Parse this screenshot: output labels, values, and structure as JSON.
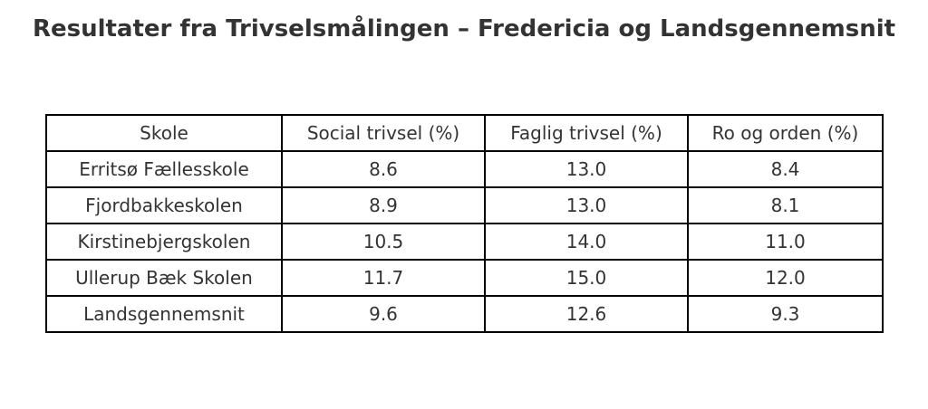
{
  "title": "Resultater fra Trivselsmålingen – Fredericia og Landsgennemsnit",
  "table": {
    "header": [
      "Skole",
      "Social trivsel (%)",
      "Faglig trivsel (%)",
      "Ro og orden (%)"
    ],
    "rows": [
      [
        "Erritsø Fællesskole",
        "8.6",
        "13.0",
        "8.4"
      ],
      [
        "Fjordbakkeskolen",
        "8.9",
        "13.0",
        "8.1"
      ],
      [
        "Kirstinebjergskolen",
        "10.5",
        "14.0",
        "11.0"
      ],
      [
        "Ullerup Bæk Skolen",
        "11.7",
        "15.0",
        "12.0"
      ],
      [
        "Landsgennemsnit",
        "9.6",
        "12.6",
        "9.3"
      ]
    ]
  }
}
